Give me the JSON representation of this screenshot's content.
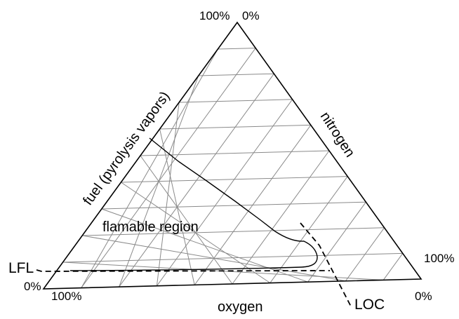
{
  "diagram": {
    "axis_labels": {
      "left": "fuel (pyrolysis vapors)",
      "right": "nitrogen",
      "bottom": "oxygen"
    },
    "corner_labels": {
      "apex_left": "100%",
      "apex_right": "0%",
      "left_base_upper": "LFL",
      "left_base_lower": "0%",
      "bottom_left": "100%",
      "right_base_upper": "100%",
      "right_base_lower": "0%",
      "loc": "LOC"
    },
    "region_label": "flamable region",
    "grid_divisions": 10,
    "colors": {
      "grid": "#8a8a8a",
      "outline": "#000000",
      "boundary": "#000000",
      "dashed": "#000000"
    }
  }
}
